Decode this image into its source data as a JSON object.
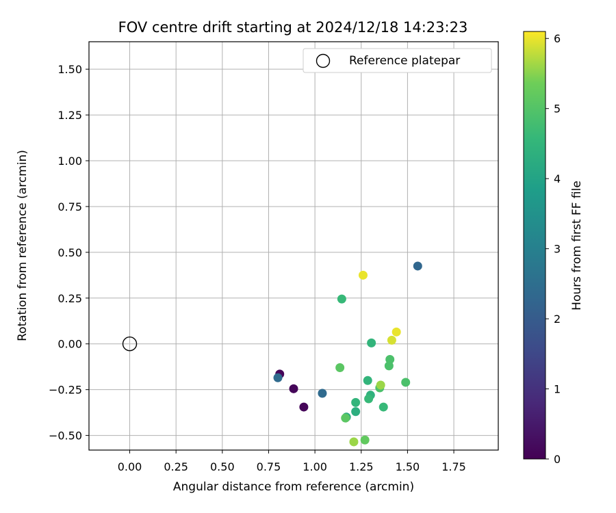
{
  "chart_data": {
    "type": "scatter",
    "title": "FOV centre drift starting at 2024/12/18 14:23:23",
    "xlabel": "Angular distance from reference (arcmin)",
    "ylabel": "Rotation from reference (arcmin)",
    "xlim": [
      -0.22,
      1.99
    ],
    "ylim": [
      -0.58,
      1.65
    ],
    "xticks": [
      "0.00",
      "0.25",
      "0.50",
      "0.75",
      "1.00",
      "1.25",
      "1.50",
      "1.75"
    ],
    "yticks": [
      "−0.50",
      "−0.25",
      "0.00",
      "0.25",
      "0.50",
      "0.75",
      "1.00",
      "1.25",
      "1.50"
    ],
    "grid": true,
    "legend": {
      "position": "top-right",
      "entries": [
        "Reference platepar"
      ]
    },
    "reference_point": {
      "x": 0.0,
      "y": 0.0
    },
    "colorbar": {
      "label": "Hours from first FF file",
      "range": [
        0,
        6.1
      ],
      "ticks": [
        "0",
        "1",
        "2",
        "3",
        "4",
        "5",
        "6"
      ],
      "colormap": "viridis"
    },
    "points": [
      {
        "x": 0.81,
        "y": -0.165,
        "hours": 0.1
      },
      {
        "x": 0.885,
        "y": -0.245,
        "hours": 0.1
      },
      {
        "x": 0.94,
        "y": -0.345,
        "hours": 0.1
      },
      {
        "x": 0.8,
        "y": -0.185,
        "hours": 2.4
      },
      {
        "x": 1.04,
        "y": -0.27,
        "hours": 2.4
      },
      {
        "x": 1.555,
        "y": 0.425,
        "hours": 2.3
      },
      {
        "x": 1.145,
        "y": 0.245,
        "hours": 4.6
      },
      {
        "x": 1.305,
        "y": 0.005,
        "hours": 4.5
      },
      {
        "x": 1.285,
        "y": -0.2,
        "hours": 4.5
      },
      {
        "x": 1.3,
        "y": -0.28,
        "hours": 4.4
      },
      {
        "x": 1.29,
        "y": -0.3,
        "hours": 4.6
      },
      {
        "x": 1.22,
        "y": -0.32,
        "hours": 4.5
      },
      {
        "x": 1.17,
        "y": -0.4,
        "hours": 4.2
      },
      {
        "x": 1.22,
        "y": -0.37,
        "hours": 4.3
      },
      {
        "x": 1.37,
        "y": -0.345,
        "hours": 4.6
      },
      {
        "x": 1.35,
        "y": -0.24,
        "hours": 4.9
      },
      {
        "x": 1.405,
        "y": -0.085,
        "hours": 4.9
      },
      {
        "x": 1.4,
        "y": -0.12,
        "hours": 4.9
      },
      {
        "x": 1.49,
        "y": -0.21,
        "hours": 4.9
      },
      {
        "x": 1.135,
        "y": -0.13,
        "hours": 5.1
      },
      {
        "x": 1.165,
        "y": -0.405,
        "hours": 5.1
      },
      {
        "x": 1.27,
        "y": -0.525,
        "hours": 5.2
      },
      {
        "x": 1.355,
        "y": -0.225,
        "hours": 5.6
      },
      {
        "x": 1.21,
        "y": -0.535,
        "hours": 5.6
      },
      {
        "x": 1.26,
        "y": 0.375,
        "hours": 6.0
      },
      {
        "x": 1.44,
        "y": 0.065,
        "hours": 6.0
      },
      {
        "x": 1.415,
        "y": 0.02,
        "hours": 5.9
      }
    ]
  }
}
